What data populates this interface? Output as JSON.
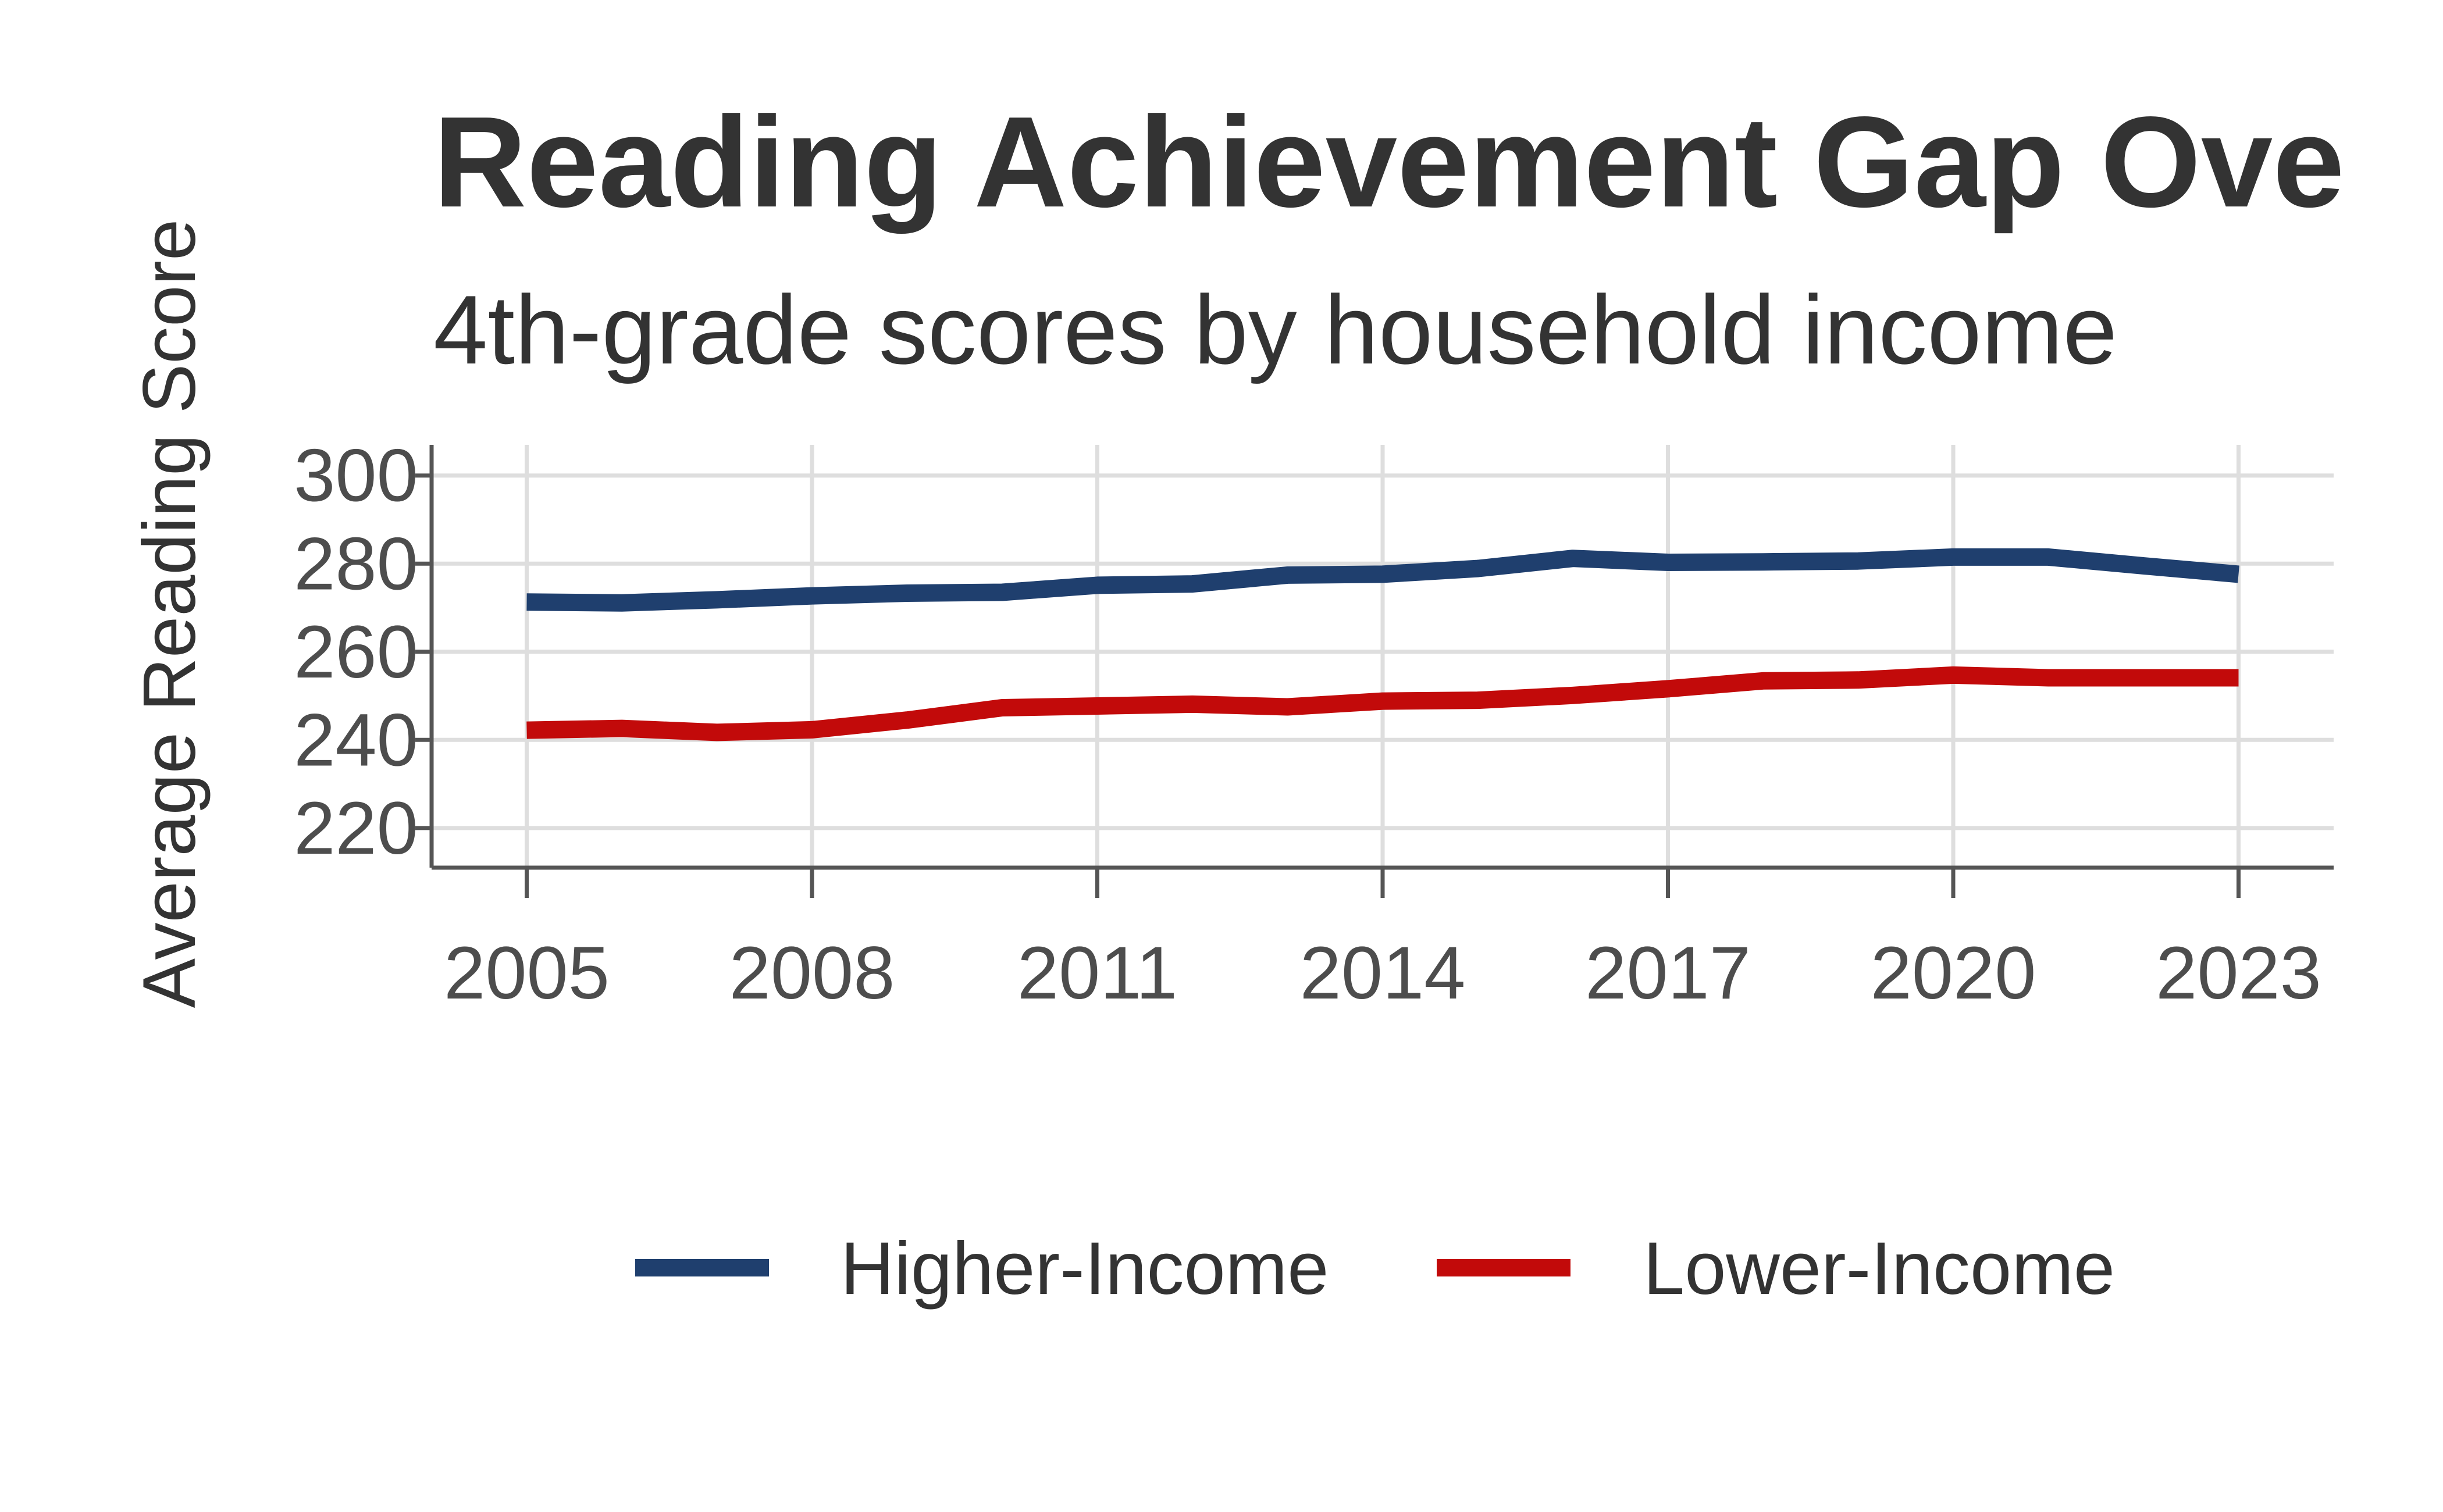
{
  "chart_data": {
    "type": "line",
    "title": "Reading Achievement Gap Ove",
    "subtitle": "4th-grade scores by household income",
    "xlabel": "",
    "ylabel": "Average Reading Score",
    "x": [
      2005,
      2006,
      2007,
      2008,
      2009,
      2010,
      2011,
      2012,
      2013,
      2014,
      2015,
      2016,
      2017,
      2018,
      2019,
      2020,
      2021,
      2022,
      2023
    ],
    "xticks": [
      "2005",
      "2008",
      "2011",
      "2014",
      "2017",
      "2020",
      "2023"
    ],
    "yticks": [
      "300",
      "280",
      "260",
      "240",
      "220"
    ],
    "xlim": [
      2004,
      2024
    ],
    "ylim": [
      211,
      303
    ],
    "grid": true,
    "legend_position": "bottom",
    "series": [
      {
        "name": "Higher-Income",
        "color": "#1f3f6e",
        "values": [
          271.3,
          271.1,
          271.8,
          272.7,
          273.3,
          273.5,
          275.1,
          275.4,
          277.4,
          277.6,
          278.9,
          281.2,
          280.3,
          280.4,
          280.6,
          281.5,
          281.5,
          279.5,
          277.6
        ]
      },
      {
        "name": "Lower-Income",
        "color": "#c20a0a",
        "values": [
          242.2,
          242.6,
          241.7,
          242.3,
          244.5,
          247.3,
          247.7,
          248.1,
          247.5,
          248.8,
          249,
          250.1,
          251.6,
          253.4,
          253.6,
          254.7,
          254.1,
          254.1,
          254.1
        ]
      }
    ]
  }
}
